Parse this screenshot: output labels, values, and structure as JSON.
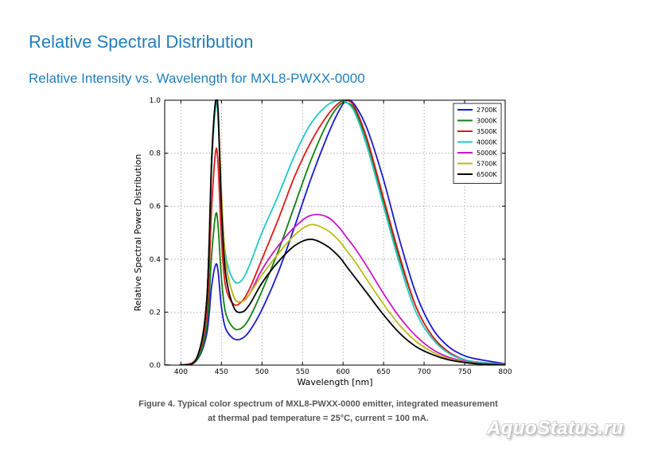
{
  "header": {
    "title": "Relative Spectral Distribution",
    "subtitle": "Relative Intensity vs. Wavelength for MXL8-PWXX-0000"
  },
  "caption": {
    "line1": "Figure 4. Typical color spectrum of MXL8-PWXX-0000 emitter, integrated measurement",
    "line2": "at thermal pad temperature = 25°C, current = 100 mA."
  },
  "watermark": "AquoStatus.ru",
  "chart_data": {
    "type": "line",
    "title": "",
    "xlabel": "Wavelength [nm]",
    "ylabel": "Relative Spectral Power Distribution",
    "xlim": [
      380,
      800
    ],
    "ylim": [
      0,
      1.0
    ],
    "x_ticks": [
      400,
      450,
      500,
      550,
      600,
      650,
      700,
      750,
      800
    ],
    "y_ticks": [
      0.0,
      0.2,
      0.4,
      0.6,
      0.8,
      1.0
    ],
    "y_tick_labels": [
      "0.0",
      "0.2",
      "0.4",
      "0.6",
      "0.8",
      "1.0"
    ],
    "grid": true,
    "legend_position": "top-right",
    "series": [
      {
        "name": "2700K",
        "color": "#1a1acc",
        "x": [
          380,
          400,
          420,
          432,
          438,
          443,
          446,
          450,
          455,
          465,
          475,
          485,
          500,
          520,
          540,
          560,
          580,
          595,
          605,
          615,
          630,
          650,
          670,
          690,
          710,
          730,
          750,
          770,
          800
        ],
        "y": [
          0.0,
          0.0,
          0.02,
          0.12,
          0.3,
          0.38,
          0.35,
          0.22,
          0.14,
          0.1,
          0.1,
          0.13,
          0.21,
          0.35,
          0.52,
          0.7,
          0.86,
          0.96,
          1.0,
          0.98,
          0.89,
          0.7,
          0.47,
          0.27,
          0.14,
          0.07,
          0.035,
          0.02,
          0.005
        ]
      },
      {
        "name": "3000K",
        "color": "#128012",
        "x": [
          380,
          400,
          420,
          432,
          438,
          443,
          446,
          450,
          455,
          465,
          475,
          485,
          500,
          520,
          540,
          560,
          580,
          595,
          605,
          615,
          630,
          650,
          670,
          690,
          710,
          730,
          750,
          770,
          800
        ],
        "y": [
          0.0,
          0.0,
          0.02,
          0.15,
          0.42,
          0.57,
          0.52,
          0.33,
          0.2,
          0.14,
          0.14,
          0.18,
          0.28,
          0.43,
          0.6,
          0.77,
          0.91,
          0.98,
          0.99,
          0.96,
          0.84,
          0.62,
          0.4,
          0.22,
          0.11,
          0.05,
          0.02,
          0.01,
          0.003
        ]
      },
      {
        "name": "3500K",
        "color": "#e01818",
        "x": [
          380,
          400,
          420,
          432,
          438,
          443,
          446,
          450,
          455,
          465,
          475,
          485,
          500,
          520,
          540,
          560,
          580,
          595,
          605,
          615,
          630,
          650,
          670,
          690,
          710,
          730,
          750,
          770,
          800
        ],
        "y": [
          0.0,
          0.0,
          0.03,
          0.2,
          0.6,
          0.81,
          0.75,
          0.48,
          0.3,
          0.23,
          0.24,
          0.29,
          0.4,
          0.55,
          0.71,
          0.84,
          0.94,
          0.99,
          1.0,
          0.97,
          0.85,
          0.63,
          0.41,
          0.22,
          0.11,
          0.05,
          0.02,
          0.01,
          0.003
        ]
      },
      {
        "name": "4000K",
        "color": "#22c8c8",
        "x": [
          380,
          400,
          420,
          432,
          438,
          443,
          446,
          450,
          455,
          465,
          475,
          485,
          500,
          520,
          540,
          560,
          580,
          595,
          605,
          615,
          630,
          650,
          670,
          690,
          710,
          730,
          750,
          770,
          800
        ],
        "y": [
          0.0,
          0.0,
          0.03,
          0.25,
          0.75,
          0.98,
          0.92,
          0.62,
          0.42,
          0.32,
          0.32,
          0.38,
          0.5,
          0.64,
          0.79,
          0.91,
          0.98,
          1.0,
          0.99,
          0.95,
          0.82,
          0.6,
          0.38,
          0.2,
          0.1,
          0.045,
          0.02,
          0.01,
          0.003
        ]
      },
      {
        "name": "5000K",
        "color": "#c618c6",
        "x": [
          380,
          400,
          420,
          432,
          438,
          443,
          446,
          450,
          455,
          465,
          475,
          485,
          500,
          520,
          540,
          560,
          580,
          595,
          605,
          615,
          630,
          650,
          670,
          690,
          710,
          730,
          750,
          770,
          800
        ],
        "y": [
          0.0,
          0.0,
          0.03,
          0.25,
          0.78,
          1.0,
          0.95,
          0.65,
          0.4,
          0.26,
          0.24,
          0.27,
          0.36,
          0.45,
          0.52,
          0.565,
          0.56,
          0.52,
          0.48,
          0.44,
          0.37,
          0.27,
          0.18,
          0.11,
          0.06,
          0.03,
          0.015,
          0.006,
          0.002
        ]
      },
      {
        "name": "5700K",
        "color": "#bcbc14",
        "x": [
          380,
          400,
          420,
          432,
          438,
          443,
          446,
          450,
          455,
          465,
          475,
          485,
          500,
          520,
          540,
          560,
          580,
          595,
          605,
          615,
          630,
          650,
          670,
          690,
          710,
          730,
          750,
          770,
          800
        ],
        "y": [
          0.0,
          0.0,
          0.03,
          0.25,
          0.78,
          1.0,
          0.95,
          0.65,
          0.4,
          0.26,
          0.24,
          0.27,
          0.34,
          0.42,
          0.49,
          0.53,
          0.51,
          0.47,
          0.43,
          0.39,
          0.32,
          0.23,
          0.15,
          0.09,
          0.05,
          0.025,
          0.012,
          0.005,
          0.002
        ]
      },
      {
        "name": "6500K",
        "color": "#000000",
        "x": [
          380,
          400,
          420,
          432,
          438,
          443,
          446,
          450,
          455,
          465,
          475,
          485,
          500,
          520,
          540,
          560,
          580,
          595,
          605,
          615,
          630,
          650,
          670,
          690,
          710,
          730,
          750,
          770,
          800
        ],
        "y": [
          0.0,
          0.0,
          0.03,
          0.25,
          0.78,
          1.0,
          0.95,
          0.6,
          0.35,
          0.22,
          0.2,
          0.23,
          0.31,
          0.39,
          0.45,
          0.475,
          0.45,
          0.41,
          0.37,
          0.33,
          0.27,
          0.19,
          0.12,
          0.07,
          0.04,
          0.02,
          0.01,
          0.004,
          0.001
        ]
      }
    ]
  }
}
